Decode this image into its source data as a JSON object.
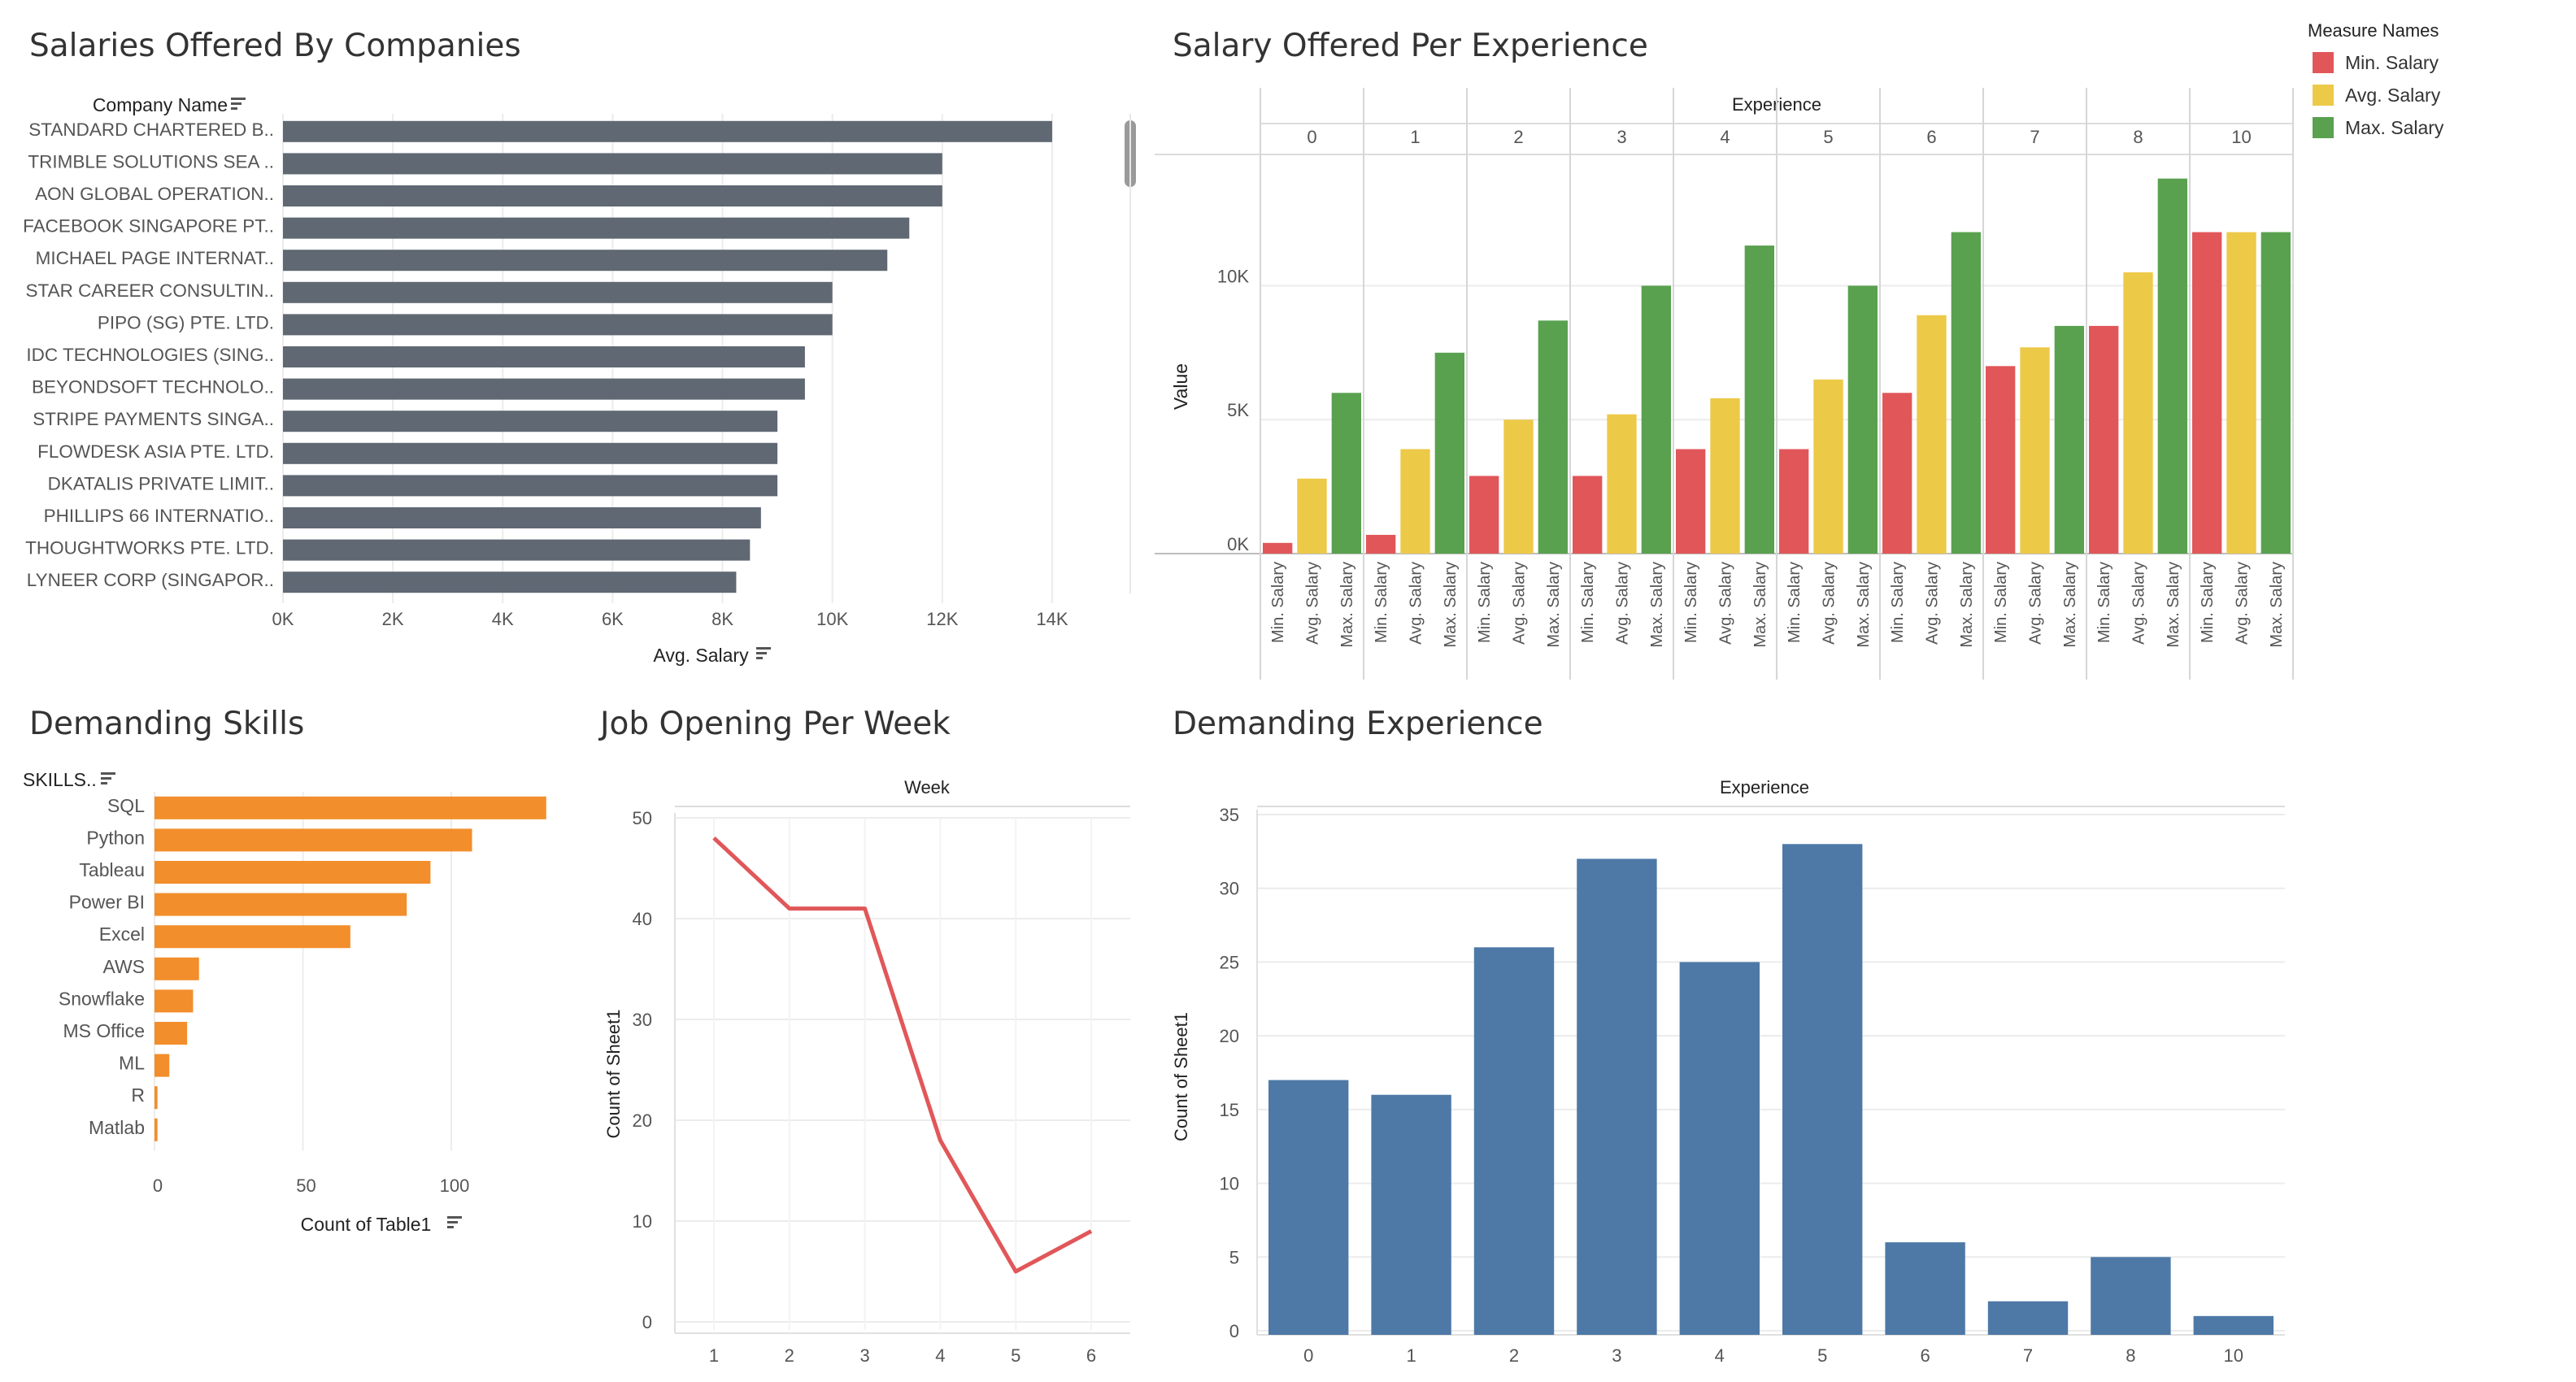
{
  "colors": {
    "bar_gray": "#5f6873",
    "orange": "#f28e2b",
    "red": "#e15759",
    "yellow": "#edc948",
    "green": "#59a14f",
    "blue": "#4e79a7",
    "line_red": "#e15759",
    "grid": "#ececec",
    "axis_text": "#555555",
    "sort_icon": "sort-descending-icon"
  },
  "panels": {
    "companies": {
      "title": "Salaries Offered By Companies"
    },
    "experience_salary": {
      "title": "Salary Offered Per Experience"
    },
    "skills": {
      "title": "Demanding Skills"
    },
    "weekly": {
      "title": "Job Opening Per Week"
    },
    "demand_exp": {
      "title": "Demanding Experience"
    }
  },
  "chart_data": [
    {
      "id": "companies",
      "type": "bar",
      "orientation": "horizontal",
      "title": "Salaries Offered By Companies",
      "ylabel": "Company Name",
      "xlabel": "Avg. Salary",
      "categories": [
        "STANDARD CHARTERED B..",
        "TRIMBLE SOLUTIONS SEA ..",
        "AON GLOBAL OPERATION..",
        "FACEBOOK SINGAPORE PT..",
        "MICHAEL PAGE INTERNAT..",
        "STAR CAREER CONSULTIN..",
        "PIPO (SG) PTE. LTD.",
        "IDC TECHNOLOGIES (SING..",
        "BEYONDSOFT TECHNOLO..",
        "STRIPE PAYMENTS SINGA..",
        "FLOWDESK ASIA PTE. LTD.",
        "DKATALIS PRIVATE LIMIT..",
        "PHILLIPS 66 INTERNATIO..",
        "THOUGHTWORKS PTE. LTD.",
        "LYNEER CORP (SINGAPOR.."
      ],
      "values": [
        14000,
        12000,
        12000,
        11400,
        11000,
        10000,
        10000,
        9500,
        9500,
        9000,
        9000,
        9000,
        8700,
        8500,
        8250
      ],
      "xlim": [
        0,
        14800
      ],
      "ticks": [
        0,
        2000,
        4000,
        6000,
        8000,
        10000,
        12000,
        14000
      ],
      "tick_labels": [
        "0K",
        "2K",
        "4K",
        "6K",
        "8K",
        "10K",
        "12K",
        "14K"
      ],
      "grid": true
    },
    {
      "id": "experience_salary",
      "type": "bar",
      "title": "Salary Offered Per Experience",
      "column_header": "Experience",
      "ylabel": "Value",
      "experience": [
        "0",
        "1",
        "2",
        "3",
        "4",
        "5",
        "6",
        "7",
        "8",
        "10"
      ],
      "measures": [
        "Min. Salary",
        "Avg. Salary",
        "Max. Salary"
      ],
      "series": [
        {
          "name": "Min. Salary",
          "values": [
            400,
            700,
            2900,
            2900,
            3900,
            3900,
            6000,
            7000,
            8500,
            12000
          ]
        },
        {
          "name": "Avg. Salary",
          "values": [
            2800,
            3900,
            5000,
            5200,
            5800,
            6500,
            8900,
            7700,
            10500,
            12000
          ]
        },
        {
          "name": "Max. Salary",
          "values": [
            6000,
            7500,
            8700,
            10000,
            11500,
            10000,
            12000,
            8500,
            14000,
            12000
          ]
        }
      ],
      "ylim": [
        0,
        14900
      ],
      "ticks": [
        0,
        5000,
        10000
      ],
      "tick_labels": [
        "0K",
        "5K",
        "10K"
      ],
      "legend": {
        "title": "Measure Names",
        "position": "top-right",
        "items": [
          "Min. Salary",
          "Avg. Salary",
          "Max. Salary"
        ]
      },
      "grid": true
    },
    {
      "id": "skills",
      "type": "bar",
      "orientation": "horizontal",
      "title": "Demanding Skills",
      "ylabel": "SKILLS..",
      "xlabel": "Count of Table1",
      "categories": [
        "SQL",
        "Python",
        "Tableau",
        "Power BI",
        "Excel",
        "AWS",
        "Snowflake",
        "MS Office",
        "ML",
        "R",
        "Matlab"
      ],
      "values": [
        132,
        107,
        93,
        85,
        66,
        15,
        13,
        11,
        5,
        1,
        1
      ],
      "xlim": [
        0,
        137
      ],
      "ticks": [
        0,
        50,
        100
      ],
      "tick_labels": [
        "0",
        "50",
        "100"
      ],
      "grid": true
    },
    {
      "id": "weekly",
      "type": "line",
      "title": "Job Opening Per Week",
      "column_header": "Week",
      "ylabel": "Count of Sheet1",
      "x": [
        1,
        2,
        3,
        4,
        5,
        6
      ],
      "x_labels": [
        "1",
        "2",
        "3",
        "4",
        "5",
        "6"
      ],
      "series": [
        {
          "values": [
            48,
            41,
            41,
            18,
            5,
            9
          ]
        }
      ],
      "ylim": [
        0,
        50
      ],
      "ticks": [
        0,
        10,
        20,
        30,
        40,
        50
      ],
      "tick_labels": [
        "0",
        "10",
        "20",
        "30",
        "40",
        "50"
      ],
      "grid": true
    },
    {
      "id": "demand_exp",
      "type": "bar",
      "title": "Demanding Experience",
      "column_header": "Experience",
      "ylabel": "Count of Sheet1",
      "categories": [
        "0",
        "1",
        "2",
        "3",
        "4",
        "5",
        "6",
        "7",
        "8",
        "10"
      ],
      "values": [
        17,
        16,
        26,
        32,
        25,
        33,
        6,
        2,
        5,
        1
      ],
      "ylim": [
        0,
        35
      ],
      "ticks": [
        0,
        5,
        10,
        15,
        20,
        25,
        30,
        35
      ],
      "tick_labels": [
        "0",
        "5",
        "10",
        "15",
        "20",
        "25",
        "30",
        "35"
      ],
      "grid": true
    }
  ]
}
